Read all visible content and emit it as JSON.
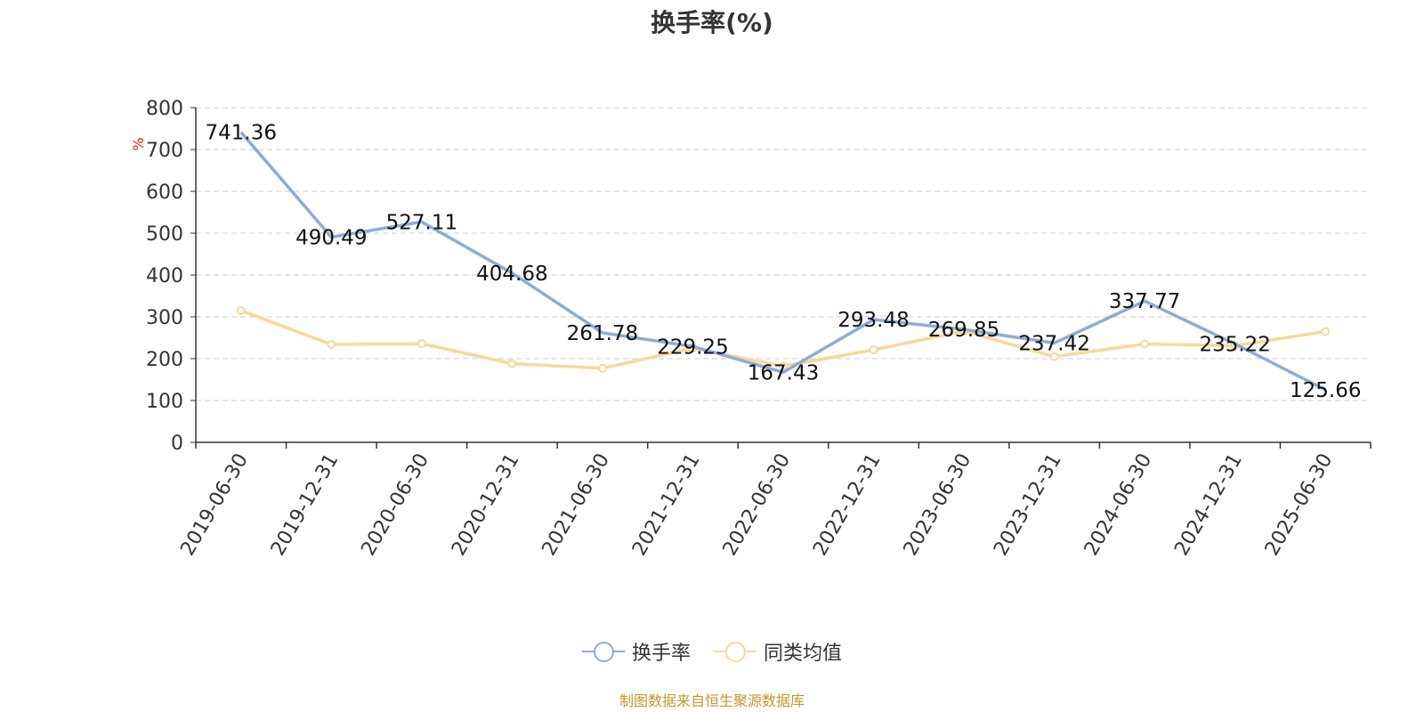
{
  "title": "换手率(%)",
  "footer": "制图数据来自恒生聚源数据库",
  "chart_data": {
    "type": "line",
    "title": "换手率(%)",
    "xlabel": "",
    "ylabel": "%",
    "ylim": [
      0,
      800
    ],
    "yticks": [
      0,
      100,
      200,
      300,
      400,
      500,
      600,
      700,
      800
    ],
    "grid": true,
    "legend_position": "bottom",
    "categories": [
      "2019-06-30",
      "2019-12-31",
      "2020-06-30",
      "2020-12-31",
      "2021-06-30",
      "2021-12-31",
      "2022-06-30",
      "2022-12-31",
      "2023-06-30",
      "2023-12-31",
      "2024-06-30",
      "2024-12-31",
      "2025-06-30"
    ],
    "series": [
      {
        "name": "换手率",
        "color": "#8eacd8",
        "values": [
          741.36,
          490.49,
          527.11,
          404.68,
          261.78,
          229.25,
          167.43,
          293.48,
          269.85,
          237.42,
          337.77,
          235.22,
          125.66
        ],
        "labels": [
          "741.36",
          "490.49",
          "527.11",
          "404.68",
          "261.78",
          "229.25",
          "167.43",
          "293.48",
          "269.85",
          "237.42",
          "337.77",
          "235.22",
          "125.66"
        ]
      },
      {
        "name": "同类均值",
        "color": "#f9d898",
        "values": [
          315,
          234,
          236,
          188,
          177,
          225,
          182,
          221,
          266,
          205,
          235,
          231,
          265
        ]
      }
    ]
  }
}
